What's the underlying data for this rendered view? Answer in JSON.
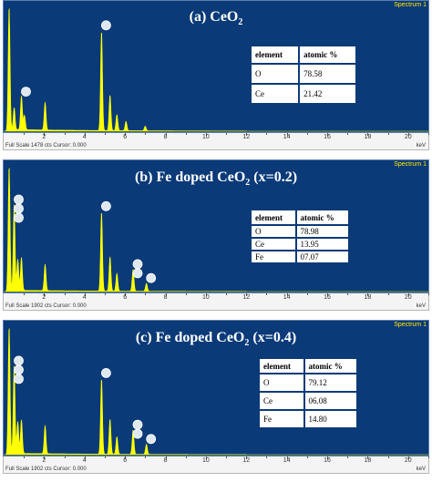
{
  "spectrum_label": "Spectrum 1",
  "colors": {
    "background": "#0a3a78",
    "spectrum": "#ffff00",
    "marker": "#dfe7ef"
  },
  "tables": [
    {
      "header": [
        "element",
        "atomic %"
      ],
      "rows": [
        [
          "O",
          "78.58"
        ],
        [
          "Ce",
          "21.42"
        ]
      ]
    },
    {
      "header": [
        "element",
        "atomic %"
      ],
      "rows": [
        [
          "O",
          "78.98"
        ],
        [
          "Ce",
          "13.95"
        ],
        [
          "Fe",
          "07.07"
        ]
      ]
    },
    {
      "header": [
        "element",
        "atomic %"
      ],
      "rows": [
        [
          "O",
          "79.12"
        ],
        [
          "Ce",
          "06.08"
        ],
        [
          "Fe",
          "14.80"
        ]
      ]
    }
  ],
  "chart_data": [
    {
      "type": "area",
      "title": "(a) CeO2",
      "footer": "Full Scale 1478 cts Cursor: 0.000",
      "xlabel": "keV",
      "xlim": [
        0,
        21
      ],
      "x_ticks": [
        2,
        4,
        6,
        8,
        10,
        12,
        14,
        16,
        18,
        20
      ],
      "ylim": [
        0,
        1478
      ],
      "grid": false,
      "series": [
        {
          "peaks_kev": [
            0.27,
            0.52,
            0.88,
            1.03,
            2.05,
            4.84,
            5.26,
            5.6,
            6.05,
            7.0
          ],
          "counts": [
            1478,
            260,
            400,
            170,
            330,
            1180,
            420,
            190,
            110,
            55
          ]
        }
      ],
      "element_markers_kev": [
        0.88,
        4.84
      ]
    },
    {
      "type": "area",
      "title": "(b) Fe doped CeO2 (x=0.2)",
      "footer": "Full Scale 1902 cts Cursor: 0.000",
      "xlabel": "keV",
      "xlim": [
        0,
        21
      ],
      "x_ticks": [
        2,
        4,
        6,
        8,
        10,
        12,
        14,
        16,
        18,
        20
      ],
      "ylim": [
        0,
        1902
      ],
      "grid": false,
      "series": [
        {
          "peaks_kev": [
            0.27,
            0.52,
            0.7,
            0.88,
            2.05,
            4.84,
            5.26,
            5.6,
            6.4,
            7.06
          ],
          "counts": [
            1902,
            1300,
            470,
            500,
            400,
            1200,
            520,
            270,
            330,
            120
          ]
        }
      ],
      "element_markers_kev": [
        0.52,
        0.52,
        0.52,
        4.84,
        6.4,
        6.4,
        7.06
      ]
    },
    {
      "type": "area",
      "title": "(c) Fe doped CeO2 (x=0.4)",
      "footer": "Full Scale 1902 cts Cursor: 0.000",
      "xlabel": "keV",
      "xlim": [
        0,
        21
      ],
      "x_ticks": [
        2,
        4,
        6,
        8,
        10,
        12,
        14,
        16,
        18,
        20
      ],
      "ylim": [
        0,
        1902
      ],
      "grid": false,
      "series": [
        {
          "peaks_kev": [
            0.27,
            0.52,
            0.7,
            0.88,
            2.05,
            4.84,
            5.26,
            5.6,
            6.4,
            7.06
          ],
          "counts": [
            1902,
            1300,
            470,
            500,
            420,
            1120,
            520,
            260,
            360,
            150
          ]
        }
      ],
      "element_markers_kev": [
        0.52,
        0.52,
        0.52,
        4.84,
        6.4,
        6.4,
        7.06
      ]
    }
  ]
}
